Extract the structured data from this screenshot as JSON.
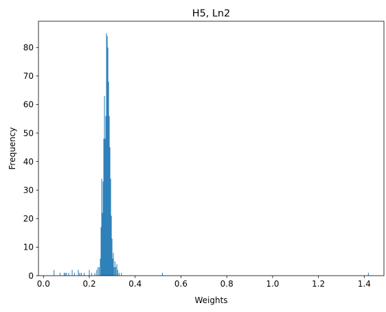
{
  "chart_data": {
    "type": "bar",
    "title": "H5, Ln2",
    "xlabel": "Weights",
    "ylabel": "Frequency",
    "xlim": [
      -0.022,
      1.486
    ],
    "ylim": [
      0,
      89.2
    ],
    "xticks": [
      "0.0",
      "0.2",
      "0.4",
      "0.6",
      "0.8",
      "1.0",
      "1.2",
      "1.4"
    ],
    "xtick_values": [
      0.0,
      0.2,
      0.4,
      0.6,
      0.8,
      1.0,
      1.2,
      1.4
    ],
    "yticks": [
      "0",
      "10",
      "20",
      "30",
      "40",
      "50",
      "60",
      "70",
      "80"
    ],
    "ytick_values": [
      0,
      10,
      20,
      30,
      40,
      50,
      60,
      70,
      80
    ],
    "bar_color": "#1f77b4",
    "bin_width": 0.00286,
    "bins": [
      {
        "x": 0.046,
        "y": 2
      },
      {
        "x": 0.072,
        "y": 1
      },
      {
        "x": 0.09,
        "y": 1
      },
      {
        "x": 0.095,
        "y": 1
      },
      {
        "x": 0.1,
        "y": 1
      },
      {
        "x": 0.11,
        "y": 1
      },
      {
        "x": 0.125,
        "y": 2
      },
      {
        "x": 0.135,
        "y": 1
      },
      {
        "x": 0.152,
        "y": 2
      },
      {
        "x": 0.158,
        "y": 1
      },
      {
        "x": 0.165,
        "y": 1
      },
      {
        "x": 0.178,
        "y": 1
      },
      {
        "x": 0.2,
        "y": 2
      },
      {
        "x": 0.21,
        "y": 1
      },
      {
        "x": 0.224,
        "y": 1
      },
      {
        "x": 0.232,
        "y": 2
      },
      {
        "x": 0.238,
        "y": 3
      },
      {
        "x": 0.243,
        "y": 3
      },
      {
        "x": 0.248,
        "y": 6
      },
      {
        "x": 0.251,
        "y": 17
      },
      {
        "x": 0.254,
        "y": 34
      },
      {
        "x": 0.257,
        "y": 22
      },
      {
        "x": 0.26,
        "y": 33
      },
      {
        "x": 0.263,
        "y": 48
      },
      {
        "x": 0.266,
        "y": 63
      },
      {
        "x": 0.269,
        "y": 48
      },
      {
        "x": 0.272,
        "y": 56
      },
      {
        "x": 0.275,
        "y": 85
      },
      {
        "x": 0.278,
        "y": 84
      },
      {
        "x": 0.281,
        "y": 80
      },
      {
        "x": 0.284,
        "y": 68
      },
      {
        "x": 0.287,
        "y": 56
      },
      {
        "x": 0.29,
        "y": 45
      },
      {
        "x": 0.293,
        "y": 34
      },
      {
        "x": 0.296,
        "y": 21
      },
      {
        "x": 0.299,
        "y": 13
      },
      {
        "x": 0.302,
        "y": 6
      },
      {
        "x": 0.305,
        "y": 8
      },
      {
        "x": 0.308,
        "y": 3
      },
      {
        "x": 0.312,
        "y": 5
      },
      {
        "x": 0.316,
        "y": 3
      },
      {
        "x": 0.32,
        "y": 4
      },
      {
        "x": 0.324,
        "y": 2
      },
      {
        "x": 0.33,
        "y": 1
      },
      {
        "x": 0.34,
        "y": 1
      },
      {
        "x": 0.519,
        "y": 1
      },
      {
        "x": 1.418,
        "y": 1
      }
    ]
  }
}
